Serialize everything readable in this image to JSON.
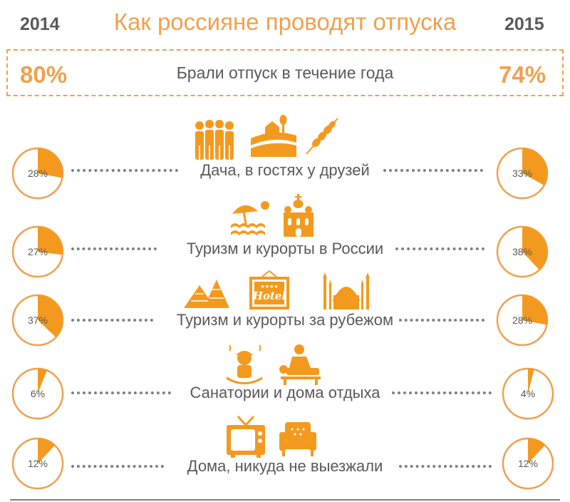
{
  "title": "Как россияне проводят отпуска",
  "years": {
    "left": "2014",
    "right": "2015"
  },
  "summary": {
    "label": "Брали отпуск в течение года",
    "left": "80%",
    "right": "74%"
  },
  "colors": {
    "accent": "#F0A050",
    "pie_fill": "#F39A1E",
    "text": "#595959"
  },
  "chart_data": {
    "type": "pie",
    "title": "Как россияне проводят отпуска",
    "series_names": [
      "2014",
      "2015"
    ],
    "categories": [
      {
        "label": "Дача, в гостях у друзей",
        "v2014": 28,
        "v2015": 33,
        "icons": [
          "people-group-icon",
          "village-landscape-icon",
          "barbecue-skewers-icon"
        ]
      },
      {
        "label": "Туризм и курорты в России",
        "v2014": 27,
        "v2015": 38,
        "icons": [
          "beach-umbrella-icon",
          "orthodox-church-icon"
        ]
      },
      {
        "label": "Туризм и курорты за рубежом",
        "v2014": 37,
        "v2015": 28,
        "icons": [
          "pyramids-icon",
          "hotel-sign-icon",
          "mosque-icon"
        ]
      },
      {
        "label": "Санатории и дома отдыха",
        "v2014": 6,
        "v2015": 4,
        "icons": [
          "spa-bath-icon",
          "massage-icon"
        ]
      },
      {
        "label": "Дома, никуда не выезжали",
        "v2014": 12,
        "v2015": 12,
        "icons": [
          "tv-icon",
          "armchair-icon"
        ]
      }
    ],
    "labels_2014": [
      "28%",
      "27%",
      "37%",
      "6%",
      "12%"
    ],
    "labels_2015": [
      "33%",
      "38%",
      "28%",
      "4%",
      "12%"
    ],
    "hotel_sign_text": "Hotel"
  }
}
